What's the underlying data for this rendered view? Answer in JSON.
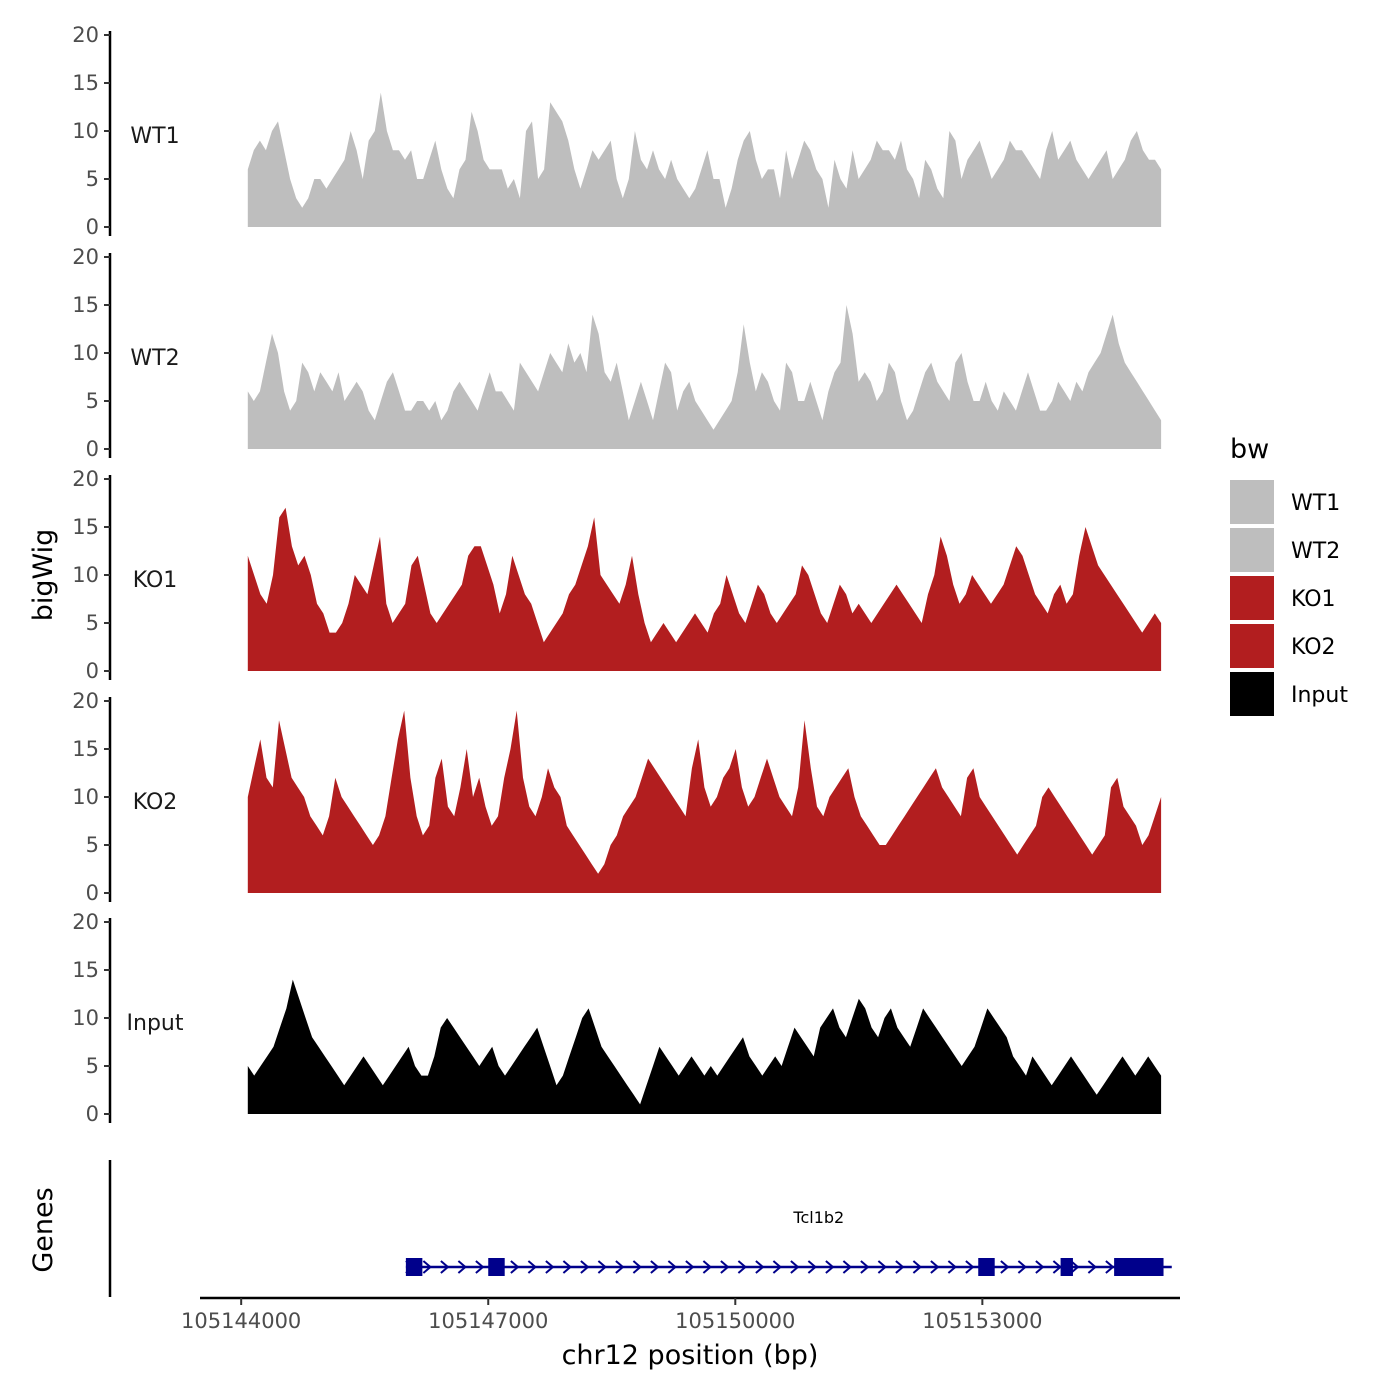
{
  "chart_data": {
    "type": "area",
    "y_axis_title": "bigWig",
    "x_axis_title": "chr12 position (bp)",
    "genes_axis_title": "Genes",
    "legend": {
      "title": "bw",
      "placement": "right",
      "entries": [
        {
          "name": "WT1",
          "color": "#bebebe"
        },
        {
          "name": "WT2",
          "color": "#bebebe"
        },
        {
          "name": "KO1",
          "color": "#b21e1f"
        },
        {
          "name": "KO2",
          "color": "#b21e1f"
        },
        {
          "name": "Input",
          "color": "#000000"
        }
      ]
    },
    "ylim": [
      0,
      20
    ],
    "y_ticks": [
      "0",
      "5",
      "10",
      "15",
      "20"
    ],
    "xlim": [
      105143500,
      105155400
    ],
    "x_ticks": [
      {
        "value": 105144000,
        "label": "105144000"
      },
      {
        "value": 105147000,
        "label": "105147000"
      },
      {
        "value": 105150000,
        "label": "105150000"
      },
      {
        "value": 105153000,
        "label": "105153000"
      }
    ],
    "signal_range": [
      105144080,
      105155170
    ],
    "series": [
      {
        "name": "WT1",
        "color": "#bebebe",
        "values": [
          6,
          8,
          9,
          8,
          10,
          11,
          8,
          5,
          3,
          2,
          3,
          5,
          5,
          4,
          5,
          6,
          7,
          10,
          8,
          5,
          9,
          10,
          14,
          10,
          8,
          8,
          7,
          8,
          5,
          5,
          7,
          9,
          6,
          4,
          3,
          6,
          7,
          12,
          10,
          7,
          6,
          6,
          6,
          4,
          5,
          3,
          10,
          11,
          5,
          6,
          13,
          12,
          11,
          9,
          6,
          4,
          6,
          8,
          7,
          8,
          9,
          5,
          3,
          5,
          10,
          7,
          6,
          8,
          6,
          5,
          7,
          5,
          4,
          3,
          4,
          6,
          8,
          5,
          5,
          2,
          4,
          7,
          9,
          10,
          7,
          5,
          6,
          6,
          3,
          8,
          5,
          7,
          9,
          8,
          6,
          5,
          2,
          7,
          5,
          4,
          8,
          5,
          6,
          7,
          9,
          8,
          8,
          7,
          9,
          6,
          5,
          3,
          7,
          6,
          4,
          3,
          10,
          9,
          5,
          7,
          8,
          9,
          7,
          5,
          6,
          7,
          9,
          8,
          8,
          7,
          6,
          5,
          8,
          10,
          7,
          8,
          9,
          7,
          6,
          5,
          6,
          7,
          8,
          5,
          6,
          7,
          9,
          10,
          8,
          7,
          7,
          6
        ]
      },
      {
        "name": "WT2",
        "color": "#bebebe",
        "values": [
          6,
          5,
          6,
          9,
          12,
          10,
          6,
          4,
          5,
          9,
          8,
          6,
          8,
          7,
          6,
          8,
          5,
          6,
          7,
          6,
          4,
          3,
          5,
          7,
          8,
          6,
          4,
          4,
          5,
          5,
          4,
          5,
          3,
          4,
          6,
          7,
          6,
          5,
          4,
          6,
          8,
          6,
          6,
          5,
          4,
          9,
          8,
          7,
          6,
          8,
          10,
          9,
          8,
          11,
          9,
          10,
          8,
          14,
          12,
          8,
          7,
          9,
          6,
          3,
          5,
          7,
          5,
          3,
          6,
          9,
          8,
          4,
          6,
          7,
          5,
          4,
          3,
          2,
          3,
          4,
          5,
          8,
          13,
          9,
          6,
          8,
          7,
          5,
          4,
          9,
          8,
          5,
          5,
          7,
          5,
          3,
          6,
          8,
          9,
          15,
          12,
          7,
          8,
          7,
          5,
          6,
          9,
          8,
          5,
          3,
          4,
          6,
          8,
          9,
          7,
          6,
          5,
          9,
          10,
          7,
          5,
          5,
          7,
          5,
          4,
          6,
          5,
          4,
          6,
          8,
          6,
          4,
          4,
          5,
          7,
          6,
          5,
          7,
          6,
          8,
          9,
          10,
          12,
          14,
          11,
          9,
          8,
          7,
          6,
          5,
          4,
          3
        ]
      },
      {
        "name": "KO1",
        "color": "#b21e1f",
        "values": [
          12,
          10,
          8,
          7,
          10,
          16,
          17,
          13,
          11,
          12,
          10,
          7,
          6,
          4,
          4,
          5,
          7,
          10,
          9,
          8,
          11,
          14,
          7,
          5,
          6,
          7,
          11,
          12,
          9,
          6,
          5,
          6,
          7,
          8,
          9,
          12,
          13,
          13,
          11,
          9,
          6,
          8,
          12,
          10,
          8,
          7,
          5,
          3,
          4,
          5,
          6,
          8,
          9,
          11,
          13,
          16,
          10,
          9,
          8,
          7,
          9,
          12,
          8,
          5,
          3,
          4,
          5,
          4,
          3,
          4,
          5,
          6,
          5,
          4,
          6,
          7,
          10,
          8,
          6,
          5,
          7,
          9,
          8,
          6,
          5,
          6,
          7,
          8,
          11,
          10,
          8,
          6,
          5,
          7,
          9,
          8,
          6,
          7,
          6,
          5,
          6,
          7,
          8,
          9,
          8,
          7,
          6,
          5,
          8,
          10,
          14,
          12,
          9,
          7,
          8,
          10,
          9,
          8,
          7,
          8,
          9,
          11,
          13,
          12,
          10,
          8,
          7,
          6,
          8,
          9,
          7,
          8,
          12,
          15,
          13,
          11,
          10,
          9,
          8,
          7,
          6,
          5,
          4,
          5,
          6,
          5
        ]
      },
      {
        "name": "KO2",
        "color": "#b21e1f",
        "values": [
          10,
          13,
          16,
          12,
          11,
          18,
          15,
          12,
          11,
          10,
          8,
          7,
          6,
          8,
          12,
          10,
          9,
          8,
          7,
          6,
          5,
          6,
          8,
          12,
          16,
          19,
          12,
          8,
          6,
          7,
          12,
          14,
          9,
          8,
          11,
          15,
          10,
          12,
          9,
          7,
          8,
          12,
          15,
          19,
          12,
          9,
          8,
          10,
          13,
          11,
          10,
          7,
          6,
          5,
          4,
          3,
          2,
          3,
          5,
          6,
          8,
          9,
          10,
          12,
          14,
          13,
          12,
          11,
          10,
          9,
          8,
          13,
          16,
          11,
          9,
          10,
          12,
          13,
          15,
          11,
          9,
          10,
          12,
          14,
          12,
          10,
          9,
          8,
          11,
          18,
          13,
          9,
          8,
          10,
          11,
          12,
          13,
          10,
          8,
          7,
          6,
          5,
          5,
          6,
          7,
          8,
          9,
          10,
          11,
          12,
          13,
          11,
          10,
          9,
          8,
          12,
          13,
          10,
          9,
          8,
          7,
          6,
          5,
          4,
          5,
          6,
          7,
          10,
          11,
          10,
          9,
          8,
          7,
          6,
          5,
          4,
          5,
          6,
          11,
          12,
          9,
          8,
          7,
          5,
          6,
          8,
          10
        ]
      },
      {
        "name": "Input",
        "color": "#000000",
        "values": [
          5,
          4,
          5,
          6,
          7,
          9,
          11,
          14,
          12,
          10,
          8,
          7,
          6,
          5,
          4,
          3,
          4,
          5,
          6,
          5,
          4,
          3,
          4,
          5,
          6,
          7,
          5,
          4,
          4,
          6,
          9,
          10,
          9,
          8,
          7,
          6,
          5,
          6,
          7,
          5,
          4,
          5,
          6,
          7,
          8,
          9,
          7,
          5,
          3,
          4,
          6,
          8,
          10,
          11,
          9,
          7,
          6,
          5,
          4,
          3,
          2,
          1,
          3,
          5,
          7,
          6,
          5,
          4,
          5,
          6,
          5,
          4,
          5,
          4,
          5,
          6,
          7,
          8,
          6,
          5,
          4,
          5,
          6,
          5,
          7,
          9,
          8,
          7,
          6,
          9,
          10,
          11,
          9,
          8,
          10,
          12,
          11,
          9,
          8,
          10,
          11,
          9,
          8,
          7,
          9,
          11,
          10,
          9,
          8,
          7,
          6,
          5,
          6,
          7,
          9,
          11,
          10,
          9,
          8,
          6,
          5,
          4,
          6,
          5,
          4,
          3,
          4,
          5,
          6,
          5,
          4,
          3,
          2,
          3,
          4,
          5,
          6,
          5,
          4,
          5,
          6,
          5,
          4
        ]
      }
    ],
    "gene_track": {
      "gene_name": "Tcl1b2",
      "strand": "+",
      "start": 105146000,
      "end": 105155300,
      "exons": [
        [
          105146000,
          105146200
        ],
        [
          105147000,
          105147200
        ],
        [
          105152950,
          105153150
        ],
        [
          105153950,
          105154100
        ],
        [
          105154600,
          105155200
        ]
      ],
      "color": "#00008b"
    }
  }
}
